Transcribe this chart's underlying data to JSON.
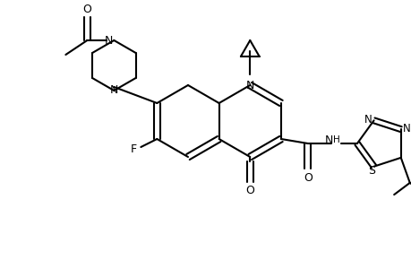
{
  "bg_color": "#ffffff",
  "line_color": "#000000",
  "line_width": 1.5,
  "figsize": [
    4.6,
    3.0
  ],
  "dpi": 100,
  "xlim": [
    0.0,
    4.6
  ],
  "ylim": [
    0.0,
    3.0
  ]
}
